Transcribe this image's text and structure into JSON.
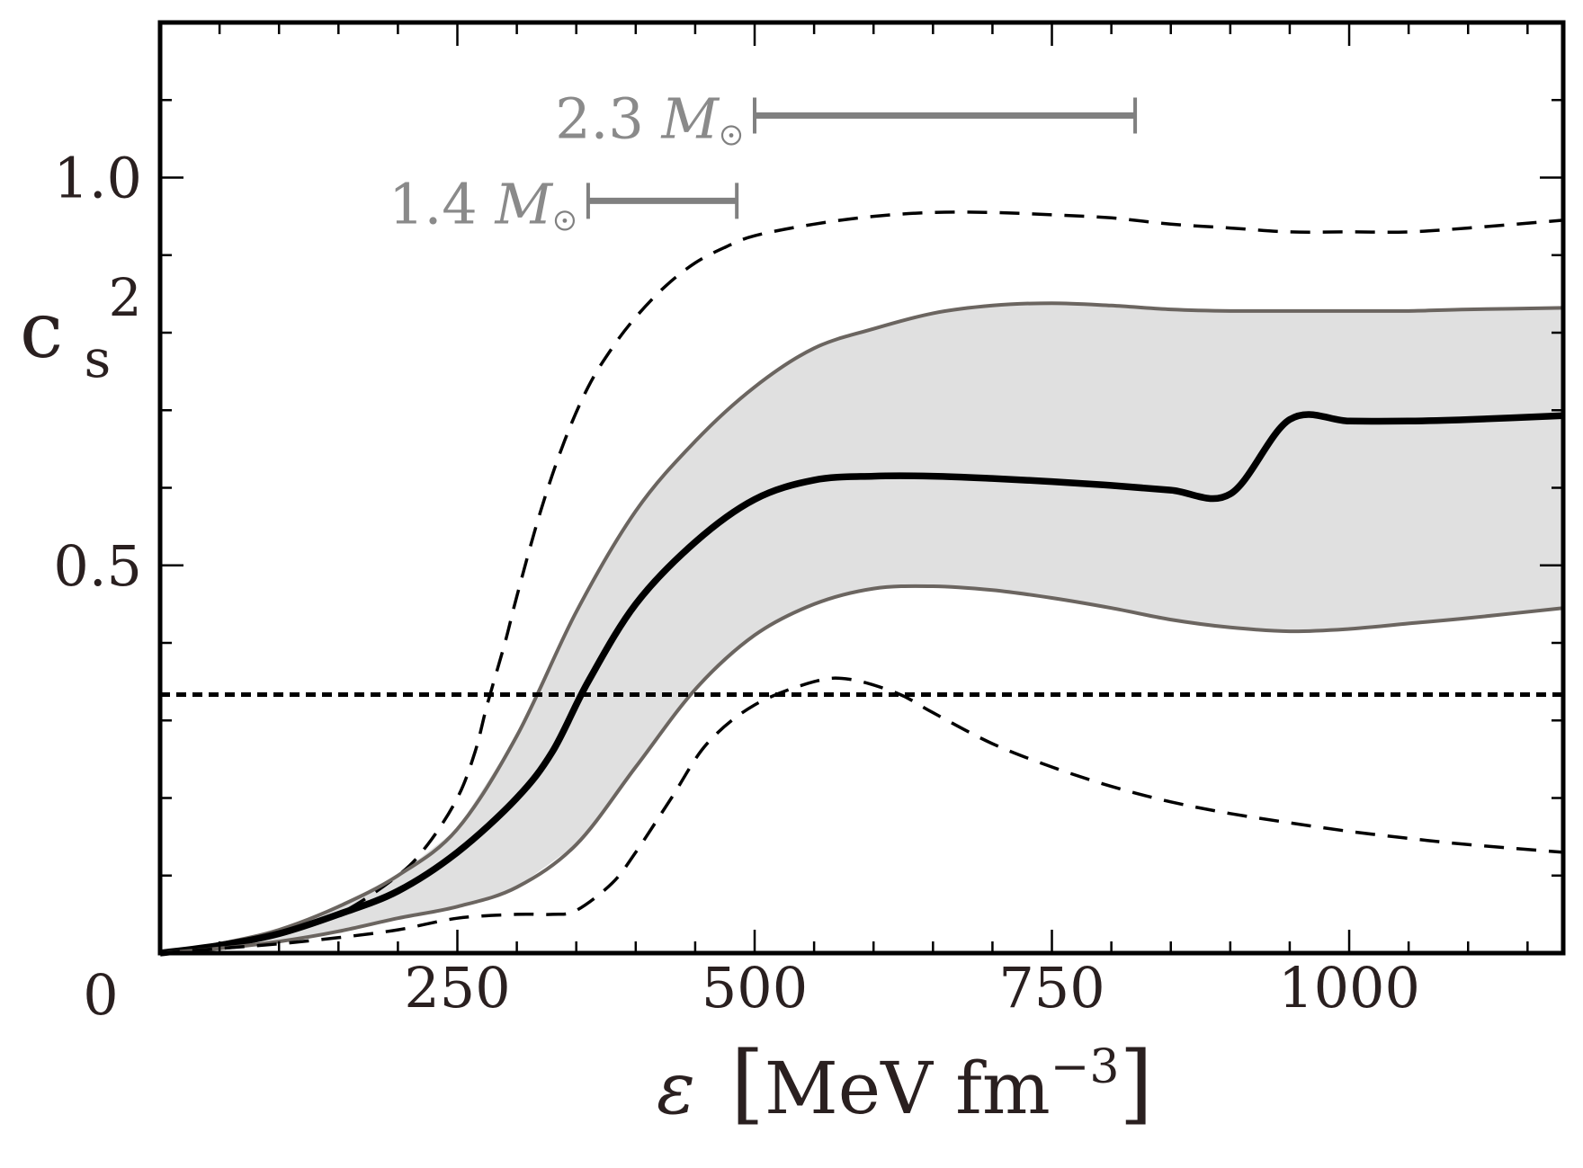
{
  "chart_data": {
    "type": "line",
    "title": "",
    "xlabel": {
      "symbol": "ε",
      "unit": "MeV fm",
      "exponent": "−3"
    },
    "ylabel": {
      "base": "c",
      "sub": "s",
      "sup": "2"
    },
    "xlim": [
      0,
      1180
    ],
    "ylim": [
      0,
      1.2
    ],
    "xticks": {
      "major": [
        250,
        500,
        750,
        1000
      ],
      "labels": [
        "250",
        "500",
        "750",
        "1000"
      ],
      "minor_step": 50
    },
    "yticks": {
      "major": [
        0.5,
        1.0
      ],
      "labels": [
        "0.5",
        "1.0"
      ],
      "minor_step": 0.1
    },
    "origin_label": "0",
    "grid": false,
    "colors": {
      "axis": "#000000",
      "band_fill": "#e0e0e0",
      "band_edge": "#6b6560",
      "median": "#000000",
      "dashed": "#000000",
      "marker": "#808080",
      "text": "#2a2020"
    },
    "series": [
      {
        "name": "outer-upper",
        "style": "dashed",
        "x": [
          0,
          50,
          100,
          150,
          200,
          225,
          250,
          265,
          275,
          290,
          300,
          320,
          340,
          360,
          380,
          400,
          425,
          450,
          475,
          500,
          550,
          600,
          650,
          700,
          750,
          800,
          850,
          900,
          950,
          1000,
          1050,
          1100,
          1180
        ],
        "y": [
          0,
          0.01,
          0.025,
          0.05,
          0.1,
          0.14,
          0.2,
          0.26,
          0.32,
          0.4,
          0.46,
          0.57,
          0.66,
          0.73,
          0.78,
          0.82,
          0.86,
          0.89,
          0.91,
          0.925,
          0.94,
          0.95,
          0.955,
          0.955,
          0.952,
          0.948,
          0.94,
          0.935,
          0.93,
          0.93,
          0.93,
          0.935,
          0.945
        ]
      },
      {
        "name": "band-upper",
        "style": "solid-gray",
        "x": [
          0,
          50,
          100,
          150,
          200,
          250,
          300,
          350,
          400,
          450,
          500,
          550,
          600,
          650,
          700,
          750,
          800,
          850,
          900,
          950,
          1000,
          1050,
          1100,
          1180
        ],
        "y": [
          0,
          0.012,
          0.03,
          0.06,
          0.1,
          0.16,
          0.28,
          0.44,
          0.57,
          0.66,
          0.73,
          0.78,
          0.805,
          0.825,
          0.835,
          0.838,
          0.835,
          0.83,
          0.828,
          0.828,
          0.828,
          0.828,
          0.83,
          0.832
        ]
      },
      {
        "name": "median",
        "style": "solid-black",
        "x": [
          0,
          50,
          100,
          150,
          200,
          250,
          300,
          330,
          360,
          400,
          450,
          500,
          550,
          600,
          650,
          700,
          750,
          800,
          850,
          900,
          950,
          1000,
          1050,
          1100,
          1180
        ],
        "y": [
          0,
          0.01,
          0.025,
          0.05,
          0.08,
          0.13,
          0.2,
          0.26,
          0.35,
          0.45,
          0.53,
          0.585,
          0.61,
          0.615,
          0.615,
          0.612,
          0.608,
          0.603,
          0.597,
          0.592,
          0.688,
          0.686,
          0.686,
          0.688,
          0.693
        ]
      },
      {
        "name": "band-lower",
        "style": "solid-gray",
        "x": [
          0,
          50,
          100,
          150,
          200,
          250,
          300,
          350,
          400,
          450,
          500,
          550,
          600,
          650,
          700,
          750,
          800,
          850,
          900,
          950,
          1000,
          1050,
          1100,
          1180
        ],
        "y": [
          0,
          0.006,
          0.015,
          0.028,
          0.045,
          0.06,
          0.085,
          0.14,
          0.24,
          0.34,
          0.41,
          0.45,
          0.47,
          0.473,
          0.468,
          0.458,
          0.445,
          0.43,
          0.42,
          0.415,
          0.418,
          0.425,
          0.432,
          0.445
        ]
      },
      {
        "name": "outer-lower",
        "style": "dashed",
        "x": [
          0,
          50,
          100,
          150,
          200,
          250,
          300,
          330,
          350,
          380,
          400,
          430,
          460,
          500,
          550,
          580,
          620,
          650,
          700,
          750,
          800,
          850,
          900,
          950,
          1000,
          1050,
          1100,
          1180
        ],
        "y": [
          0,
          0.006,
          0.012,
          0.02,
          0.03,
          0.045,
          0.05,
          0.05,
          0.055,
          0.09,
          0.13,
          0.2,
          0.27,
          0.32,
          0.35,
          0.353,
          0.335,
          0.31,
          0.27,
          0.24,
          0.215,
          0.195,
          0.18,
          0.168,
          0.157,
          0.148,
          0.14,
          0.13
        ]
      },
      {
        "name": "conformal-limit",
        "style": "dotted",
        "x": [
          0,
          1180
        ],
        "y": [
          0.3333,
          0.3333
        ]
      }
    ],
    "markers": [
      {
        "name": "2.3 M_sun",
        "label_value": "2.3",
        "label_unit": "M",
        "x_start": 500,
        "x_end": 820,
        "y": 1.08
      },
      {
        "name": "1.4 M_sun",
        "label_value": "1.4",
        "label_unit": "M",
        "x_start": 360,
        "x_end": 485,
        "y": 0.97
      }
    ]
  }
}
